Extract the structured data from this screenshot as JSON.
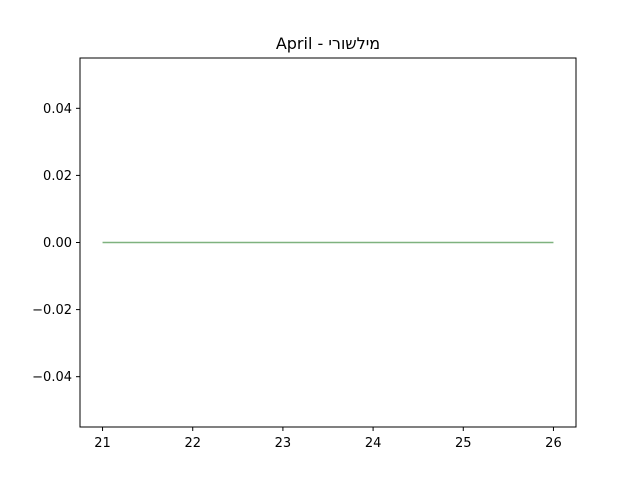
{
  "chart_data": {
    "type": "line",
    "title": "April - מילשורי",
    "xlabel": "",
    "ylabel": "",
    "x": [
      21,
      22,
      23,
      24,
      25,
      26
    ],
    "series": [
      {
        "values": [
          0,
          0,
          0,
          0,
          0,
          0
        ],
        "color": "#7fb27f"
      }
    ],
    "xlim": [
      20.75,
      26.25
    ],
    "ylim": [
      -0.055,
      0.055
    ],
    "x_ticks": [
      21,
      22,
      23,
      24,
      25,
      26
    ],
    "x_tick_labels": [
      "21",
      "22",
      "23",
      "24",
      "25",
      "26"
    ],
    "y_ticks": [
      -0.04,
      -0.02,
      0.0,
      0.02,
      0.04
    ],
    "y_tick_labels": [
      "−0.04",
      "−0.02",
      "0.00",
      "0.02",
      "0.04"
    ],
    "grid": false,
    "legend": "none"
  }
}
